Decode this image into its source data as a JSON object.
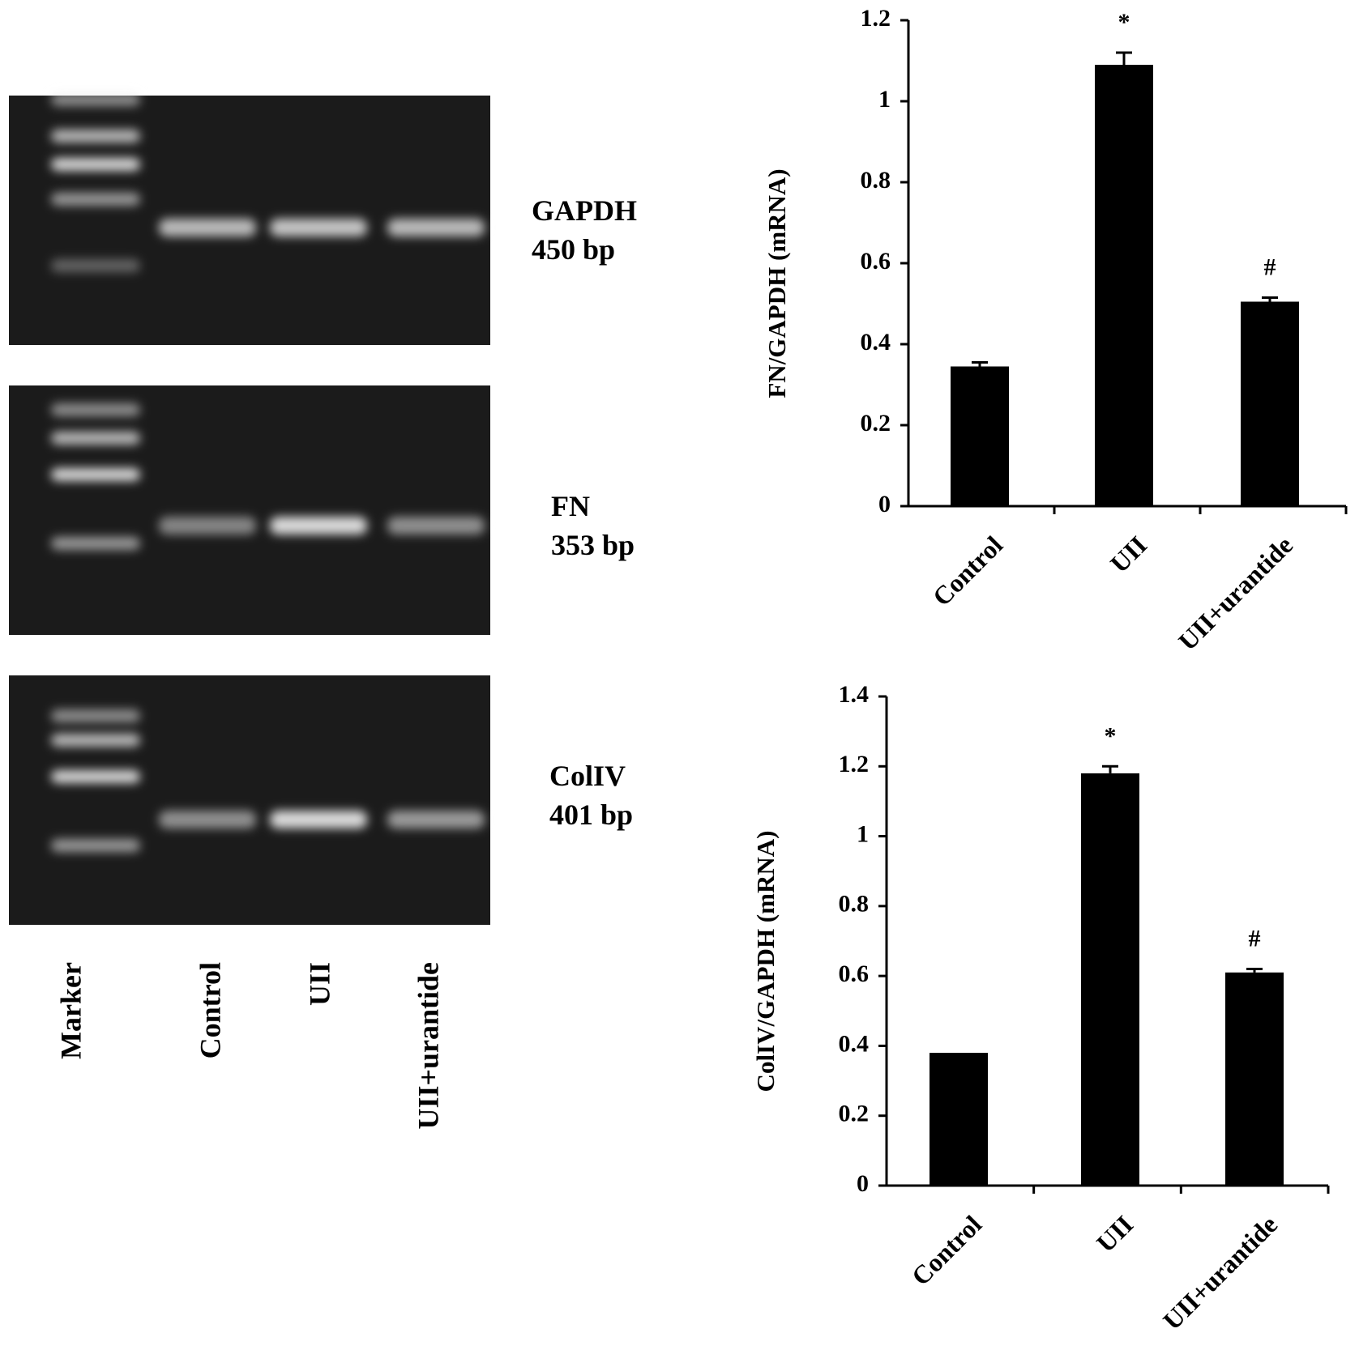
{
  "chart_data": [
    {
      "type": "bar",
      "y_label": "FN/GAPDH (mRNA)",
      "categories": [
        "Control",
        "UII",
        "UII+urantide"
      ],
      "values": [
        0.345,
        1.09,
        0.505
      ],
      "errors": [
        0.01,
        0.03,
        0.01
      ],
      "annotations": [
        null,
        "*",
        "#"
      ],
      "color": "#000000",
      "ylim": [
        0,
        1.2
      ],
      "yticks": [
        0,
        0.2,
        0.4,
        0.6,
        0.8,
        1,
        1.2
      ]
    },
    {
      "type": "bar",
      "y_label": "ColIV/GAPDH (mRNA)",
      "categories": [
        "Control",
        "UII",
        "UII+urantide"
      ],
      "values": [
        0.38,
        1.18,
        0.61
      ],
      "errors": [
        0,
        0.02,
        0.01
      ],
      "annotations": [
        null,
        "*",
        "#"
      ],
      "color": "#000000",
      "ylim": [
        0,
        1.4
      ],
      "yticks": [
        0,
        0.2,
        0.4,
        0.6,
        0.8,
        1,
        1.2,
        1.4
      ]
    }
  ],
  "gel": {
    "lanes": [
      "Marker",
      "Control",
      "UII",
      "UII+urantide"
    ],
    "panels": [
      {
        "gene": "GAPDH",
        "size": "450 bp"
      },
      {
        "gene": "FN",
        "size": "353 bp"
      },
      {
        "gene": "ColIV",
        "size": "401 bp"
      }
    ]
  }
}
